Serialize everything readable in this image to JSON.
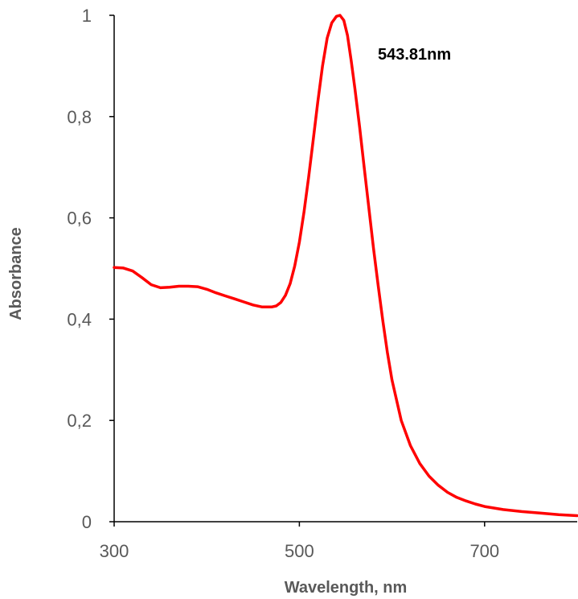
{
  "chart_data": {
    "type": "line",
    "title": "",
    "xlabel": "Wavelength, nm",
    "ylabel": "Absorbance",
    "xlim": [
      300,
      800
    ],
    "ylim": [
      0,
      1
    ],
    "x_ticks": [
      300,
      500,
      700
    ],
    "x_tick_labels": [
      "300",
      "500",
      "700"
    ],
    "y_ticks": [
      0,
      0.2,
      0.4,
      0.6,
      0.8,
      1
    ],
    "y_tick_labels": [
      "0",
      "0,2",
      "0,4",
      "0,6",
      "0,8",
      "1"
    ],
    "grid": false,
    "legend": false,
    "colors": {
      "line": "#ff0000",
      "axis": "#000000",
      "text": "#595959"
    },
    "annotation": {
      "text": "543.81nm",
      "x": 543.81,
      "y": 1.0
    },
    "series": [
      {
        "x": [
          300,
          310,
          320,
          330,
          340,
          350,
          360,
          370,
          380,
          390,
          400,
          410,
          420,
          430,
          440,
          450,
          460,
          470,
          475,
          480,
          485,
          490,
          495,
          500,
          505,
          510,
          515,
          520,
          525,
          530,
          535,
          540,
          543.81,
          548,
          552,
          556,
          560,
          565,
          570,
          575,
          580,
          585,
          590,
          595,
          600,
          610,
          620,
          630,
          640,
          650,
          660,
          670,
          680,
          690,
          700,
          720,
          740,
          760,
          780,
          800
        ],
        "y": [
          0.502,
          0.501,
          0.495,
          0.482,
          0.468,
          0.462,
          0.463,
          0.465,
          0.465,
          0.464,
          0.459,
          0.452,
          0.446,
          0.44,
          0.434,
          0.428,
          0.424,
          0.424,
          0.426,
          0.433,
          0.447,
          0.47,
          0.505,
          0.552,
          0.612,
          0.68,
          0.755,
          0.83,
          0.9,
          0.955,
          0.985,
          0.998,
          1.0,
          0.99,
          0.96,
          0.91,
          0.855,
          0.78,
          0.7,
          0.62,
          0.54,
          0.468,
          0.398,
          0.335,
          0.28,
          0.2,
          0.15,
          0.115,
          0.09,
          0.072,
          0.058,
          0.048,
          0.041,
          0.035,
          0.03,
          0.024,
          0.02,
          0.017,
          0.014,
          0.012
        ]
      }
    ]
  }
}
